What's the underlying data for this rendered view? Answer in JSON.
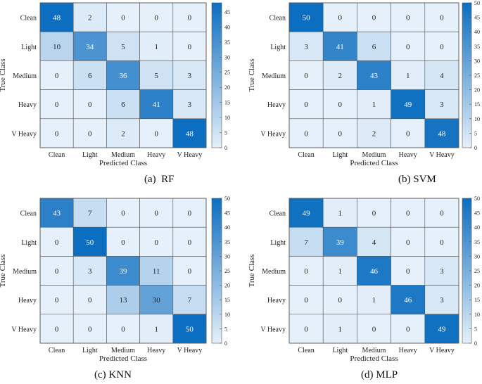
{
  "chart_data": [
    {
      "type": "heatmap",
      "caption": "(a)  RF",
      "xlabel": "Predicted Class",
      "ylabel": "True Class",
      "classes": [
        "Clean",
        "Light",
        "Medium",
        "Heavy",
        "V Heavy"
      ],
      "matrix": [
        [
          48,
          2,
          0,
          0,
          0
        ],
        [
          10,
          34,
          5,
          1,
          0
        ],
        [
          0,
          6,
          36,
          5,
          3
        ],
        [
          0,
          0,
          6,
          41,
          3
        ],
        [
          0,
          0,
          2,
          0,
          48
        ]
      ],
      "colorbar": {
        "min": 0,
        "max": 48,
        "ticks": [
          0,
          5,
          10,
          15,
          20,
          25,
          30,
          35,
          40,
          45
        ]
      }
    },
    {
      "type": "heatmap",
      "caption": "(b) SVM",
      "xlabel": "Predicted Class",
      "ylabel": "True Class",
      "classes": [
        "Clean",
        "Light",
        "Medium",
        "Heavy",
        "V Heavy"
      ],
      "matrix": [
        [
          50,
          0,
          0,
          0,
          0
        ],
        [
          3,
          41,
          6,
          0,
          0
        ],
        [
          0,
          2,
          43,
          1,
          4
        ],
        [
          0,
          0,
          1,
          49,
          3
        ],
        [
          0,
          0,
          2,
          0,
          48
        ]
      ],
      "colorbar": {
        "min": 0,
        "max": 50,
        "ticks": [
          0,
          5,
          10,
          15,
          20,
          25,
          30,
          35,
          40,
          45,
          50
        ]
      }
    },
    {
      "type": "heatmap",
      "caption": "(c) KNN",
      "xlabel": "Predicted Class",
      "ylabel": "True Class",
      "classes": [
        "Clean",
        "Light",
        "Medium",
        "Heavy",
        "V Heavy"
      ],
      "matrix": [
        [
          43,
          7,
          0,
          0,
          0
        ],
        [
          0,
          50,
          0,
          0,
          0
        ],
        [
          0,
          3,
          39,
          11,
          0
        ],
        [
          0,
          0,
          13,
          30,
          7
        ],
        [
          0,
          0,
          0,
          1,
          50
        ]
      ],
      "colorbar": {
        "min": 0,
        "max": 50,
        "ticks": [
          0,
          5,
          10,
          15,
          20,
          25,
          30,
          35,
          40,
          45,
          50
        ]
      }
    },
    {
      "type": "heatmap",
      "caption": "(d) MLP",
      "xlabel": "Predicted Class",
      "ylabel": "True Class",
      "classes": [
        "Clean",
        "Light",
        "Medium",
        "Heavy",
        "V Heavy"
      ],
      "matrix": [
        [
          49,
          1,
          0,
          0,
          0
        ],
        [
          7,
          39,
          4,
          0,
          0
        ],
        [
          0,
          1,
          46,
          0,
          3
        ],
        [
          0,
          0,
          1,
          46,
          3
        ],
        [
          0,
          1,
          0,
          0,
          49
        ]
      ],
      "colorbar": {
        "min": 0,
        "max": 50,
        "ticks": [
          0,
          5,
          10,
          15,
          20,
          25,
          30,
          35,
          40,
          45,
          50
        ]
      }
    }
  ]
}
